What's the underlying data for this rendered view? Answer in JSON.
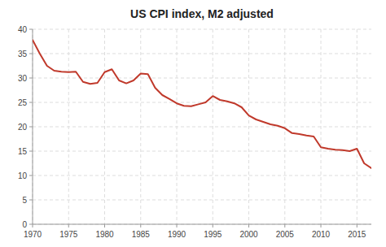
{
  "chart_data": {
    "type": "line",
    "title": "US CPI index, M2 adjusted",
    "x": [
      1970,
      1971,
      1972,
      1973,
      1974,
      1975,
      1976,
      1977,
      1978,
      1979,
      1980,
      1981,
      1982,
      1983,
      1984,
      1985,
      1986,
      1987,
      1988,
      1989,
      1990,
      1991,
      1992,
      1993,
      1994,
      1995,
      1996,
      1997,
      1998,
      1999,
      2000,
      2001,
      2002,
      2003,
      2004,
      2005,
      2006,
      2007,
      2008,
      2009,
      2010,
      2011,
      2012,
      2013,
      2014,
      2015,
      2016,
      2017
    ],
    "values": [
      37.8,
      35.0,
      32.5,
      31.5,
      31.3,
      31.2,
      31.3,
      29.2,
      28.8,
      29.0,
      31.2,
      31.8,
      29.5,
      28.9,
      29.5,
      30.9,
      30.8,
      28.0,
      26.5,
      25.7,
      24.8,
      24.3,
      24.2,
      24.6,
      25.0,
      26.3,
      25.5,
      25.2,
      24.8,
      24.0,
      22.3,
      21.5,
      21.0,
      20.5,
      20.2,
      19.7,
      18.7,
      18.5,
      18.2,
      18.0,
      15.8,
      15.5,
      15.3,
      15.2,
      15.0,
      15.5,
      12.5,
      11.5
    ],
    "color": "#c0392b",
    "xlim": [
      1970,
      2017
    ],
    "ylim": [
      0,
      40
    ],
    "xticks": [
      1970,
      1975,
      1980,
      1985,
      1990,
      1995,
      2000,
      2005,
      2010,
      2015
    ],
    "yticks": [
      0,
      5,
      10,
      15,
      20,
      25,
      30,
      35,
      40
    ],
    "grid": true
  }
}
